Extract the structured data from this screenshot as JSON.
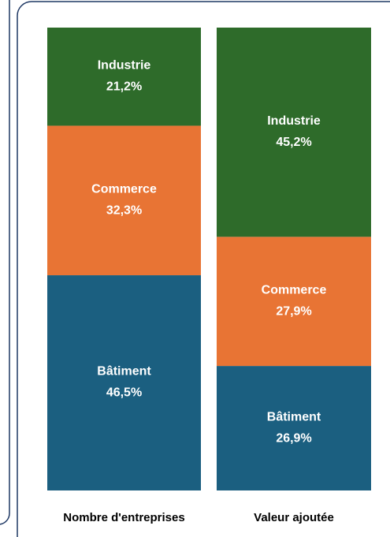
{
  "chart_data": {
    "type": "stacked_bar",
    "categories": [
      "Nombre d'entreprises",
      "Valeur ajoutée"
    ],
    "series": [
      {
        "name": "Bâtiment",
        "color": "#1b5f80",
        "values": [
          46.5,
          26.9
        ],
        "value_labels": [
          "46,5%",
          "26,9%"
        ]
      },
      {
        "name": "Commerce",
        "color": "#e87434",
        "values": [
          32.3,
          27.9
        ],
        "value_labels": [
          "32,3%",
          "27,9%"
        ]
      },
      {
        "name": "Industrie",
        "color": "#2e6b2a",
        "values": [
          21.2,
          45.2
        ],
        "value_labels": [
          "21,2%",
          "45,2%"
        ]
      }
    ],
    "ylim": [
      0,
      100
    ]
  }
}
